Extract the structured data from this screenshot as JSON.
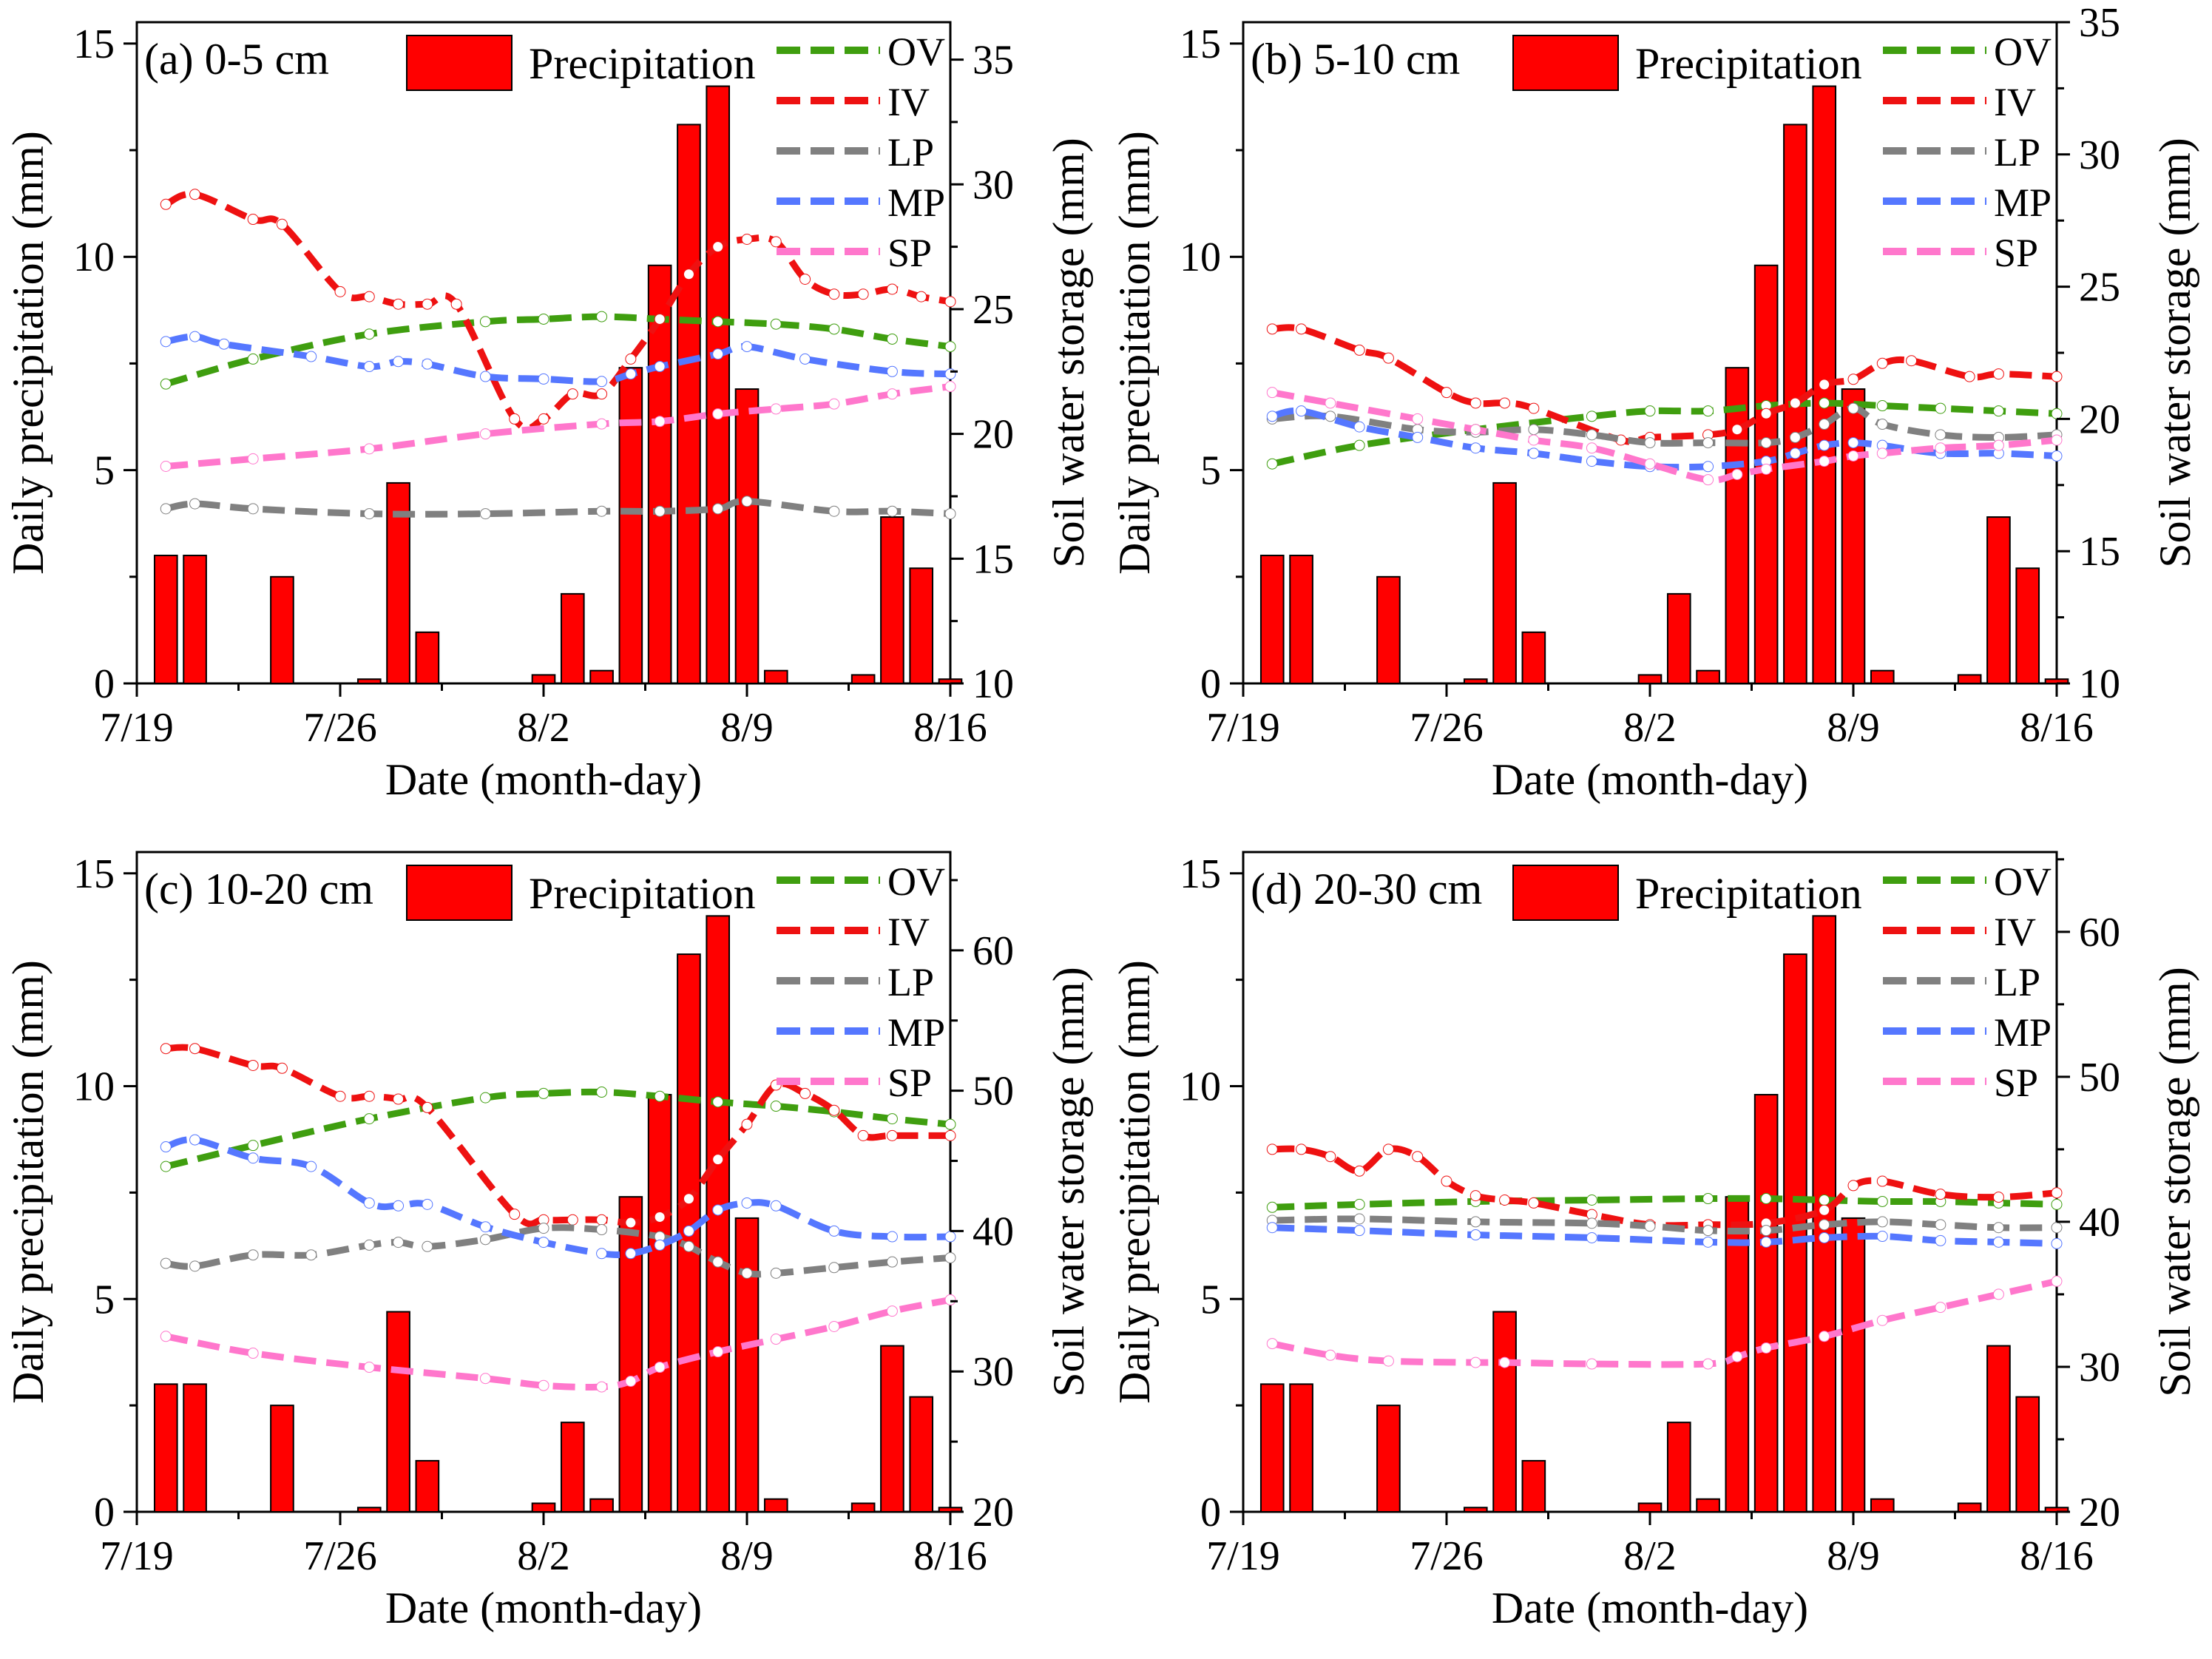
{
  "legend": {
    "precipitation_label": "Precipitation",
    "precipitation_color": "#ff0000",
    "series": [
      {
        "name": "OV",
        "color": "#3f9e0f"
      },
      {
        "name": "IV",
        "color": "#ee1111"
      },
      {
        "name": "LP",
        "color": "#808080"
      },
      {
        "name": "MP",
        "color": "#5577ff"
      },
      {
        "name": "SP",
        "color": "#ff77cc"
      }
    ]
  },
  "chart_data": [
    {
      "type": "bar+line",
      "title": "(a) 0-5 cm",
      "xlabel": "Date (month-day)",
      "ylabel": "Daily precipitation (mm)",
      "y2label": "Soil water storage (mm)",
      "x_ticks": [
        "7/19",
        "7/26",
        "8/2",
        "8/9",
        "8/16"
      ],
      "y_ticks": [
        "0",
        "5",
        "10",
        "15"
      ],
      "y2_ticks": [
        "10",
        "15",
        "20",
        "25",
        "30",
        "35"
      ],
      "xlim": [
        0,
        28
      ],
      "ylim": [
        0,
        15.5
      ],
      "y2lim": [
        10,
        36.5
      ],
      "precipitation": {
        "days": [
          1,
          2,
          5,
          8,
          9,
          10,
          14,
          15,
          16,
          17,
          18,
          19,
          20,
          21,
          22,
          25,
          26,
          27,
          28
        ],
        "values": [
          3,
          3,
          2.5,
          0.1,
          4.7,
          1.2,
          0.2,
          2.1,
          0.3,
          7.4,
          9.8,
          13.1,
          14,
          6.9,
          0.3,
          0.2,
          3.9,
          2.7,
          0.1
        ]
      },
      "series": [
        {
          "name": "OV",
          "x": [
            1,
            4,
            8,
            12,
            14,
            16,
            18,
            20,
            22,
            24,
            26,
            28
          ],
          "y": [
            22,
            23,
            24,
            24.5,
            24.6,
            24.7,
            24.6,
            24.5,
            24.4,
            24.2,
            23.8,
            23.5
          ]
        },
        {
          "name": "IV",
          "x": [
            1,
            2,
            4,
            5,
            7,
            8,
            9,
            10,
            11,
            13,
            14,
            15,
            16,
            17,
            18,
            19,
            20,
            21,
            22,
            23,
            24,
            25,
            26,
            27,
            28
          ],
          "y": [
            29.2,
            29.6,
            28.6,
            28.4,
            25.7,
            25.5,
            25.2,
            25.2,
            25.2,
            20.6,
            20.6,
            21.6,
            21.6,
            23,
            24.6,
            26.4,
            27.5,
            27.8,
            27.7,
            26.2,
            25.6,
            25.6,
            25.8,
            25.5,
            25.3
          ]
        },
        {
          "name": "LP",
          "x": [
            1,
            2,
            4,
            8,
            12,
            16,
            18,
            20,
            21,
            24,
            26,
            28
          ],
          "y": [
            17,
            17.2,
            17,
            16.8,
            16.8,
            16.9,
            16.9,
            17,
            17.3,
            16.9,
            16.9,
            16.8
          ]
        },
        {
          "name": "MP",
          "x": [
            1,
            2,
            3,
            6,
            8,
            9,
            10,
            12,
            14,
            16,
            17,
            18,
            20,
            21,
            23,
            26,
            28
          ],
          "y": [
            23.7,
            23.9,
            23.6,
            23.1,
            22.7,
            22.9,
            22.8,
            22.3,
            22.2,
            22.1,
            22.4,
            22.7,
            23.2,
            23.5,
            23,
            22.5,
            22.4
          ]
        },
        {
          "name": "SP",
          "x": [
            1,
            4,
            8,
            12,
            16,
            18,
            20,
            22,
            24,
            26,
            28
          ],
          "y": [
            18.7,
            19,
            19.4,
            20,
            20.4,
            20.5,
            20.8,
            21,
            21.2,
            21.6,
            21.9
          ]
        }
      ]
    },
    {
      "type": "bar+line",
      "title": "(b) 5-10 cm",
      "xlabel": "Date (month-day)",
      "ylabel": "Daily precipitation (mm)",
      "y2label": "Soil water storage (mm)",
      "x_ticks": [
        "7/19",
        "7/26",
        "8/2",
        "8/9",
        "8/16"
      ],
      "y_ticks": [
        "0",
        "5",
        "10",
        "15"
      ],
      "y2_ticks": [
        "10",
        "15",
        "20",
        "25",
        "30",
        "35"
      ],
      "xlim": [
        0,
        28
      ],
      "ylim": [
        0,
        15.5
      ],
      "y2lim": [
        10,
        35
      ],
      "precipitation": {
        "days": [
          1,
          2,
          5,
          8,
          9,
          10,
          14,
          15,
          16,
          17,
          18,
          19,
          20,
          21,
          22,
          25,
          26,
          27,
          28
        ],
        "values": [
          3,
          3,
          2.5,
          0.1,
          4.7,
          1.2,
          0.2,
          2.1,
          0.3,
          7.4,
          9.8,
          13.1,
          14,
          6.9,
          0.3,
          0.2,
          3.9,
          2.7,
          0.1
        ]
      },
      "series": [
        {
          "name": "OV",
          "x": [
            1,
            4,
            8,
            12,
            14,
            16,
            18,
            20,
            22,
            24,
            26,
            28
          ],
          "y": [
            18.3,
            19,
            19.6,
            20.1,
            20.3,
            20.3,
            20.5,
            20.6,
            20.5,
            20.4,
            20.3,
            20.2
          ]
        },
        {
          "name": "IV",
          "x": [
            1,
            2,
            4,
            5,
            7,
            8,
            9,
            10,
            13,
            14,
            16,
            17,
            18,
            19,
            20,
            21,
            22,
            23,
            25,
            26,
            28
          ],
          "y": [
            23.4,
            23.4,
            22.6,
            22.3,
            21,
            20.6,
            20.6,
            20.4,
            19.2,
            19.3,
            19.4,
            19.6,
            20.2,
            20.6,
            21.3,
            21.5,
            22.1,
            22.2,
            21.6,
            21.7,
            21.6
          ]
        },
        {
          "name": "LP",
          "x": [
            1,
            3,
            6,
            8,
            10,
            12,
            14,
            16,
            18,
            19,
            20,
            21,
            22,
            24,
            26,
            28
          ],
          "y": [
            20,
            20.1,
            19.6,
            19.5,
            19.6,
            19.4,
            19.1,
            19.1,
            19.1,
            19.3,
            19.8,
            20.4,
            19.8,
            19.4,
            19.3,
            19.4
          ]
        },
        {
          "name": "MP",
          "x": [
            1,
            2,
            4,
            6,
            8,
            10,
            12,
            14,
            16,
            18,
            19,
            20,
            21,
            22,
            24,
            26,
            28
          ],
          "y": [
            20.1,
            20.3,
            19.7,
            19.3,
            18.9,
            18.7,
            18.4,
            18.2,
            18.2,
            18.4,
            18.7,
            19,
            19.1,
            19,
            18.7,
            18.7,
            18.6
          ]
        },
        {
          "name": "SP",
          "x": [
            1,
            3,
            6,
            8,
            10,
            12,
            14,
            16,
            17,
            18,
            20,
            21,
            22,
            24,
            26,
            28
          ],
          "y": [
            21,
            20.6,
            20,
            19.6,
            19.2,
            18.9,
            18.3,
            17.7,
            17.9,
            18.1,
            18.4,
            18.6,
            18.7,
            18.9,
            19,
            19.2
          ]
        }
      ]
    },
    {
      "type": "bar+line",
      "title": "(c) 10-20 cm",
      "xlabel": "Date (month-day)",
      "ylabel": "Daily precipitation (mm)",
      "y2label": "Soil water storage (mm)",
      "x_ticks": [
        "7/19",
        "7/26",
        "8/2",
        "8/9",
        "8/16"
      ],
      "y_ticks": [
        "0",
        "5",
        "10",
        "15"
      ],
      "y2_ticks": [
        "20",
        "30",
        "40",
        "50",
        "60"
      ],
      "xlim": [
        0,
        28
      ],
      "ylim": [
        0,
        15.5
      ],
      "y2lim": [
        20,
        67
      ],
      "precipitation": {
        "days": [
          1,
          2,
          5,
          8,
          9,
          10,
          14,
          15,
          16,
          17,
          18,
          19,
          20,
          21,
          22,
          25,
          26,
          27,
          28
        ],
        "values": [
          3,
          3,
          2.5,
          0.1,
          4.7,
          1.2,
          0.2,
          2.1,
          0.3,
          7.4,
          9.8,
          13.1,
          14,
          6.9,
          0.3,
          0.2,
          3.9,
          2.7,
          0.1
        ]
      },
      "series": [
        {
          "name": "OV",
          "x": [
            1,
            4,
            8,
            12,
            14,
            16,
            18,
            20,
            22,
            24,
            26,
            28
          ],
          "y": [
            44.6,
            46.1,
            48,
            49.5,
            49.8,
            49.9,
            49.6,
            49.2,
            48.9,
            48.5,
            48,
            47.6
          ]
        },
        {
          "name": "IV",
          "x": [
            1,
            2,
            4,
            5,
            7,
            8,
            9,
            10,
            13,
            14,
            15,
            16,
            17,
            18,
            19,
            20,
            21,
            22,
            23,
            24,
            25,
            26,
            28
          ],
          "y": [
            53,
            53,
            51.8,
            51.6,
            49.6,
            49.6,
            49.4,
            48.8,
            41.2,
            40.8,
            40.8,
            40.8,
            40.6,
            41,
            42.3,
            45.1,
            47.6,
            50.4,
            49.8,
            48.6,
            46.8,
            46.8,
            46.8
          ]
        },
        {
          "name": "LP",
          "x": [
            1,
            2,
            4,
            6,
            8,
            9,
            10,
            12,
            14,
            16,
            18,
            19,
            20,
            21,
            22,
            24,
            26,
            28
          ],
          "y": [
            37.7,
            37.5,
            38.3,
            38.3,
            39,
            39.2,
            38.9,
            39.4,
            40.2,
            40.1,
            39.6,
            38.9,
            37.8,
            37,
            37,
            37.4,
            37.8,
            38.1
          ]
        },
        {
          "name": "MP",
          "x": [
            1,
            2,
            4,
            6,
            8,
            9,
            10,
            12,
            14,
            16,
            17,
            18,
            19,
            20,
            21,
            22,
            24,
            26,
            28
          ],
          "y": [
            46,
            46.5,
            45.2,
            44.6,
            42,
            41.8,
            41.9,
            40.3,
            39.2,
            38.4,
            38.4,
            39,
            40,
            41.5,
            42,
            41.8,
            40,
            39.6,
            39.6
          ]
        },
        {
          "name": "SP",
          "x": [
            1,
            4,
            8,
            12,
            14,
            16,
            17,
            18,
            20,
            22,
            24,
            26,
            28
          ],
          "y": [
            32.5,
            31.3,
            30.3,
            29.5,
            29,
            28.9,
            29.3,
            30.3,
            31.4,
            32.3,
            33.2,
            34.3,
            35.1
          ]
        }
      ]
    },
    {
      "type": "bar+line",
      "title": "(d) 20-30 cm",
      "xlabel": "Date (month-day)",
      "ylabel": "Daily precipitation (mm)",
      "y2label": "Soil water storage (mm)",
      "x_ticks": [
        "7/19",
        "7/26",
        "8/2",
        "8/9",
        "8/16"
      ],
      "y_ticks": [
        "0",
        "5",
        "10",
        "15"
      ],
      "y2_ticks": [
        "20",
        "30",
        "40",
        "50",
        "60"
      ],
      "xlim": [
        0,
        28
      ],
      "ylim": [
        0,
        15.5
      ],
      "y2lim": [
        20,
        65.5
      ],
      "precipitation": {
        "days": [
          1,
          2,
          5,
          8,
          9,
          10,
          14,
          15,
          16,
          17,
          18,
          19,
          20,
          21,
          22,
          25,
          26,
          27,
          28
        ],
        "values": [
          3,
          3,
          2.5,
          0.1,
          4.7,
          1.2,
          0.2,
          2.1,
          0.3,
          7.4,
          9.8,
          13.1,
          14,
          6.9,
          0.3,
          0.2,
          3.9,
          2.7,
          0.1
        ]
      },
      "series": [
        {
          "name": "OV",
          "x": [
            1,
            4,
            8,
            12,
            16,
            18,
            20,
            22,
            24,
            26,
            28
          ],
          "y": [
            41,
            41.2,
            41.4,
            41.5,
            41.6,
            41.6,
            41.5,
            41.4,
            41.4,
            41.3,
            41.2
          ]
        },
        {
          "name": "IV",
          "x": [
            1,
            2,
            3,
            4,
            5,
            6,
            7,
            8,
            9,
            10,
            12,
            14,
            16,
            18,
            20,
            21,
            22,
            24,
            26,
            28
          ],
          "y": [
            45,
            45,
            44.5,
            43.5,
            45,
            44.5,
            42.8,
            41.8,
            41.5,
            41.3,
            40.5,
            39.8,
            39.8,
            39.9,
            40.8,
            42.5,
            42.8,
            41.9,
            41.7,
            42
          ]
        },
        {
          "name": "LP",
          "x": [
            1,
            4,
            8,
            12,
            14,
            16,
            18,
            20,
            22,
            24,
            26,
            28
          ],
          "y": [
            40.1,
            40.2,
            40,
            39.9,
            39.7,
            39.4,
            39.4,
            39.8,
            40,
            39.8,
            39.6,
            39.6
          ]
        },
        {
          "name": "MP",
          "x": [
            1,
            4,
            8,
            12,
            16,
            18,
            20,
            22,
            24,
            26,
            28
          ],
          "y": [
            39.6,
            39.4,
            39.1,
            38.9,
            38.6,
            38.6,
            38.9,
            39,
            38.7,
            38.6,
            38.5
          ]
        },
        {
          "name": "SP",
          "x": [
            1,
            3,
            5,
            8,
            9,
            12,
            16,
            17,
            18,
            20,
            22,
            24,
            26,
            28
          ],
          "y": [
            31.6,
            30.8,
            30.4,
            30.3,
            30.3,
            30.2,
            30.2,
            30.7,
            31.3,
            32.1,
            33.2,
            34.1,
            35,
            35.9
          ]
        }
      ]
    }
  ]
}
